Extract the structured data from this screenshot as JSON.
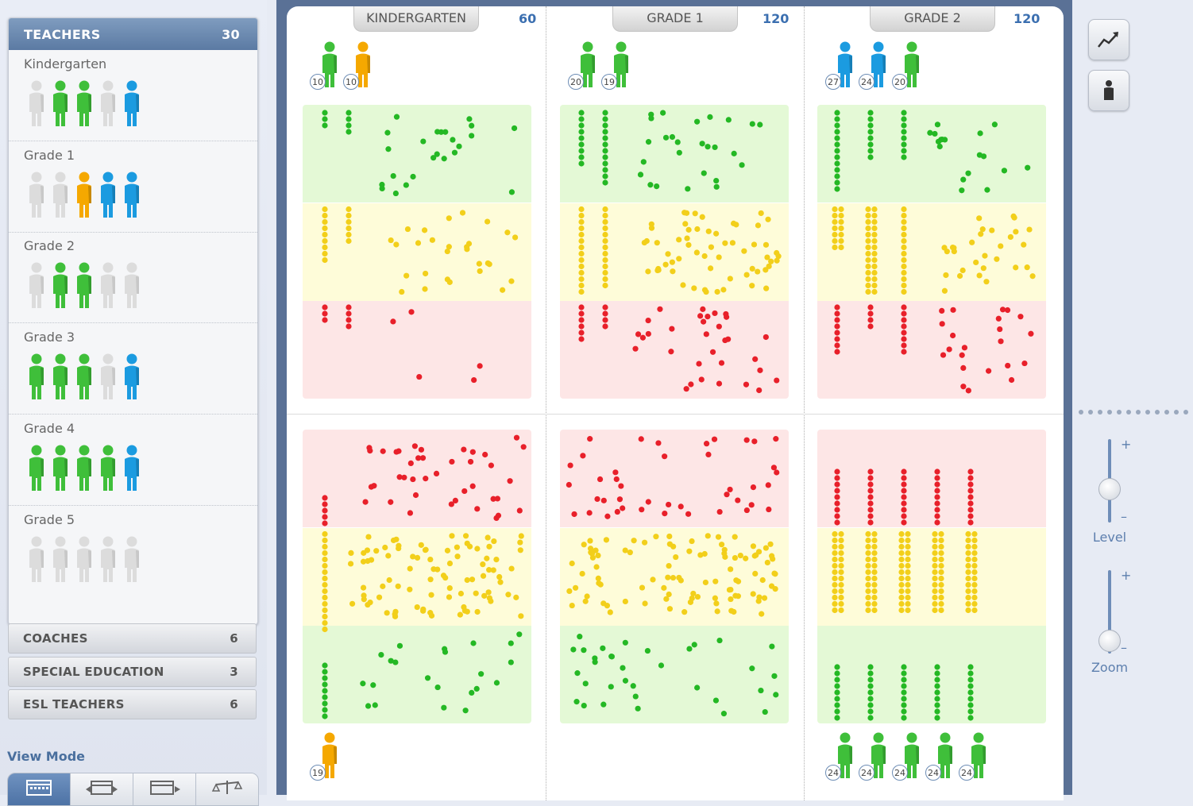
{
  "sidebar": {
    "teachers": {
      "title": "TEACHERS",
      "count": "30"
    },
    "grades": [
      {
        "label": "Kindergarten",
        "people": [
          "gray",
          "green",
          "green",
          "gray",
          "blue"
        ]
      },
      {
        "label": "Grade 1",
        "people": [
          "gray",
          "gray",
          "orange",
          "blue",
          "blue"
        ]
      },
      {
        "label": "Grade 2",
        "people": [
          "gray",
          "green",
          "green",
          "gray",
          "gray"
        ]
      },
      {
        "label": "Grade 3",
        "people": [
          "green",
          "green",
          "green",
          "gray",
          "blue"
        ]
      },
      {
        "label": "Grade 4",
        "people": [
          "green",
          "green",
          "green",
          "green",
          "blue"
        ]
      },
      {
        "label": "Grade 5",
        "people": [
          "gray",
          "gray",
          "gray",
          "gray",
          "gray"
        ]
      }
    ],
    "categories": [
      {
        "label": "COACHES",
        "count": "6"
      },
      {
        "label": "SPECIAL EDUCATION",
        "count": "3"
      },
      {
        "label": "ESL TEACHERS",
        "count": "6"
      }
    ],
    "view_mode_label": "View Mode",
    "view_mode_tabs": [
      "calendar-icon",
      "calendar-arrows-icon",
      "calendar-arrow-right-icon",
      "scale-icon"
    ]
  },
  "colors": {
    "green": "#3fbf3a",
    "blue": "#1b9be0",
    "orange": "#f5a800",
    "gray": "#dcdcdc",
    "red_dot": "#e8202a",
    "yellow_dot": "#f2cf1a",
    "green_dot": "#24b824",
    "accent": "#3b6fb0"
  },
  "columns": [
    {
      "name": "KINDERGARTEN",
      "count": "60",
      "top_teachers": [
        {
          "color": "green",
          "badge": "10"
        },
        {
          "color": "orange",
          "badge": "10"
        }
      ],
      "bottom_teachers": [
        {
          "color": "orange",
          "badge": "19"
        }
      ]
    },
    {
      "name": "GRADE 1",
      "count": "120",
      "top_teachers": [
        {
          "color": "green",
          "badge": "20"
        },
        {
          "color": "green",
          "badge": "19"
        }
      ],
      "bottom_teachers": []
    },
    {
      "name": "GRADE 2",
      "count": "120",
      "top_teachers": [
        {
          "color": "blue",
          "badge": "27"
        },
        {
          "color": "blue",
          "badge": "24"
        },
        {
          "color": "green",
          "badge": "20"
        }
      ],
      "bottom_teachers": [
        {
          "color": "green",
          "badge": "24"
        },
        {
          "color": "green",
          "badge": "24"
        },
        {
          "color": "green",
          "badge": "24"
        },
        {
          "color": "green",
          "badge": "24"
        },
        {
          "color": "green",
          "badge": "24"
        }
      ]
    }
  ],
  "tools": {
    "trend_button": "trend-chart-icon",
    "person_button": "person-icon",
    "level_label": "Level",
    "zoom_label": "Zoom",
    "plus": "+",
    "minus": "–",
    "level_value": 0.4,
    "zoom_value": 0.15
  }
}
